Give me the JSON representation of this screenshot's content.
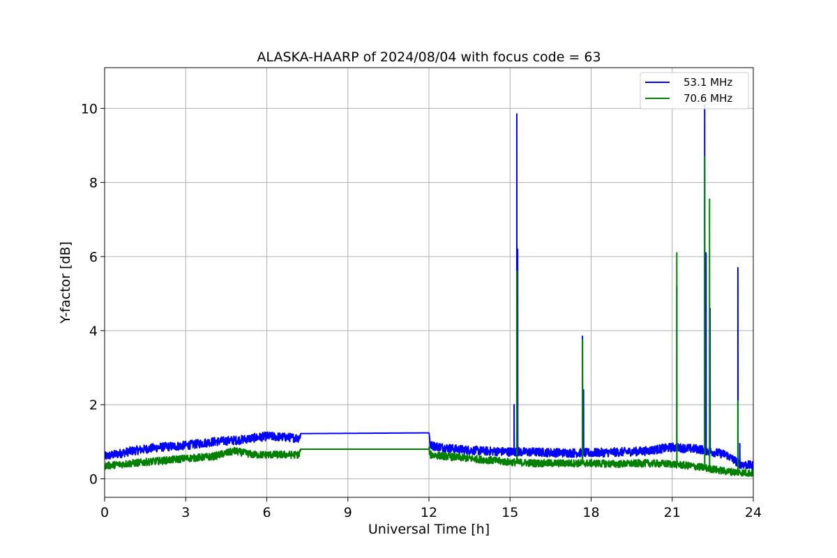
{
  "chart_data": {
    "type": "line",
    "title": "ALASKA-HAARP of 2024/08/04 with focus code = 63",
    "xlabel": "Universal Time [h]",
    "ylabel": "Y-factor [dB]",
    "xlim": [
      0,
      24
    ],
    "ylim": [
      -0.5,
      11.1
    ],
    "xticks": [
      0,
      3,
      6,
      9,
      12,
      15,
      18,
      21,
      24
    ],
    "yticks": [
      0,
      2,
      4,
      6,
      8,
      10
    ],
    "xtick_labels": [
      "0",
      "3",
      "6",
      "9",
      "12",
      "15",
      "18",
      "21",
      "24"
    ],
    "ytick_labels": [
      "0",
      "2",
      "4",
      "6",
      "8",
      "10"
    ],
    "grid": true,
    "legend_position": "top-right",
    "series": [
      {
        "name": "53.1 MHz",
        "color": "#0000ff",
        "noise": 0.12,
        "baseline": [
          [
            0,
            0.6
          ],
          [
            1,
            0.75
          ],
          [
            2,
            0.85
          ],
          [
            3,
            0.9
          ],
          [
            4,
            1.0
          ],
          [
            5,
            1.05
          ],
          [
            6,
            1.15
          ],
          [
            7.2,
            1.1
          ],
          [
            7.25,
            1.22
          ],
          [
            12,
            1.24
          ],
          [
            12.05,
            0.9
          ],
          [
            13,
            0.8
          ],
          [
            14,
            0.75
          ],
          [
            15,
            0.73
          ],
          [
            16,
            0.72
          ],
          [
            17,
            0.7
          ],
          [
            18,
            0.7
          ],
          [
            19,
            0.72
          ],
          [
            20,
            0.75
          ],
          [
            21,
            0.85
          ],
          [
            22,
            0.8
          ],
          [
            23,
            0.65
          ],
          [
            23.5,
            0.4
          ],
          [
            24,
            0.35
          ]
        ],
        "flat_ranges": [
          [
            7.25,
            12.0
          ]
        ],
        "spikes": [
          [
            15.15,
            2.0
          ],
          [
            15.25,
            9.85
          ],
          [
            15.28,
            6.2
          ],
          [
            17.68,
            3.85
          ],
          [
            17.72,
            2.4
          ],
          [
            21.17,
            5.2
          ],
          [
            22.2,
            10.1
          ],
          [
            22.25,
            6.1
          ],
          [
            22.4,
            4.6
          ],
          [
            23.43,
            5.7
          ],
          [
            23.5,
            0.95
          ]
        ]
      },
      {
        "name": "70.6 MHz",
        "color": "#008000",
        "noise": 0.1,
        "baseline": [
          [
            0,
            0.35
          ],
          [
            1,
            0.42
          ],
          [
            2,
            0.48
          ],
          [
            3,
            0.55
          ],
          [
            4,
            0.6
          ],
          [
            4.8,
            0.75
          ],
          [
            5.5,
            0.65
          ],
          [
            6,
            0.65
          ],
          [
            7.2,
            0.65
          ],
          [
            7.25,
            0.8
          ],
          [
            12,
            0.8
          ],
          [
            12.05,
            0.65
          ],
          [
            13,
            0.58
          ],
          [
            14,
            0.52
          ],
          [
            15,
            0.45
          ],
          [
            16,
            0.42
          ],
          [
            17,
            0.42
          ],
          [
            18,
            0.42
          ],
          [
            19,
            0.4
          ],
          [
            20,
            0.42
          ],
          [
            21,
            0.4
          ],
          [
            22,
            0.32
          ],
          [
            23,
            0.2
          ],
          [
            24,
            0.15
          ]
        ],
        "flat_ranges": [
          [
            7.25,
            12.0
          ]
        ],
        "spikes": [
          [
            15.25,
            5.6
          ],
          [
            17.68,
            3.75
          ],
          [
            21.17,
            6.1
          ],
          [
            22.2,
            8.7
          ],
          [
            22.38,
            7.55
          ],
          [
            23.43,
            2.1
          ]
        ]
      }
    ]
  }
}
